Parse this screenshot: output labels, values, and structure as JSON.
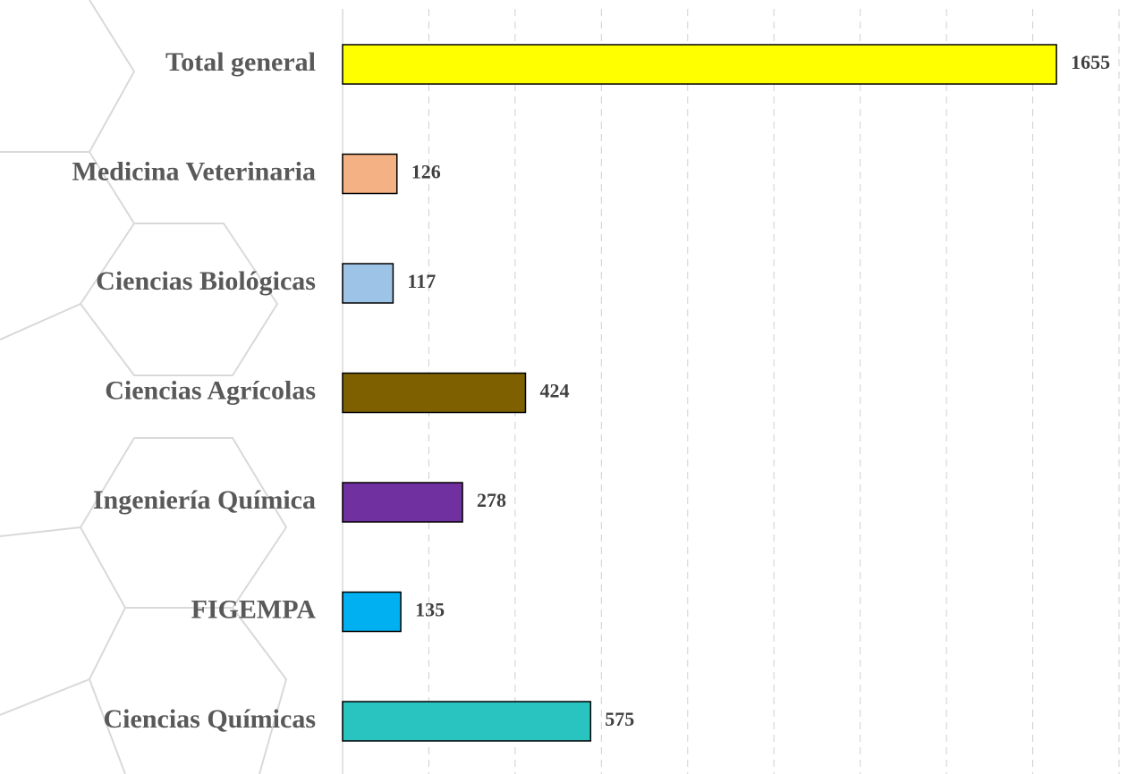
{
  "chart_data": {
    "type": "bar",
    "orientation": "horizontal",
    "categories": [
      "Total general",
      "Medicina Veterinaria",
      "Ciencias Biológicas",
      "Ciencias Agrícolas",
      "Ingeniería Química",
      "FIGEMPA",
      "Ciencias Químicas"
    ],
    "values": [
      1655,
      126,
      117,
      424,
      278,
      135,
      575
    ],
    "colors": [
      "#ffff00",
      "#f4b183",
      "#9dc3e6",
      "#7f6000",
      "#7030a0",
      "#00b0f0",
      "#2ac4c0"
    ],
    "xlim": [
      0,
      1800
    ],
    "xticks": [
      200,
      400,
      600,
      800,
      1000,
      1200,
      1400,
      1600,
      1800
    ],
    "grid": true
  }
}
